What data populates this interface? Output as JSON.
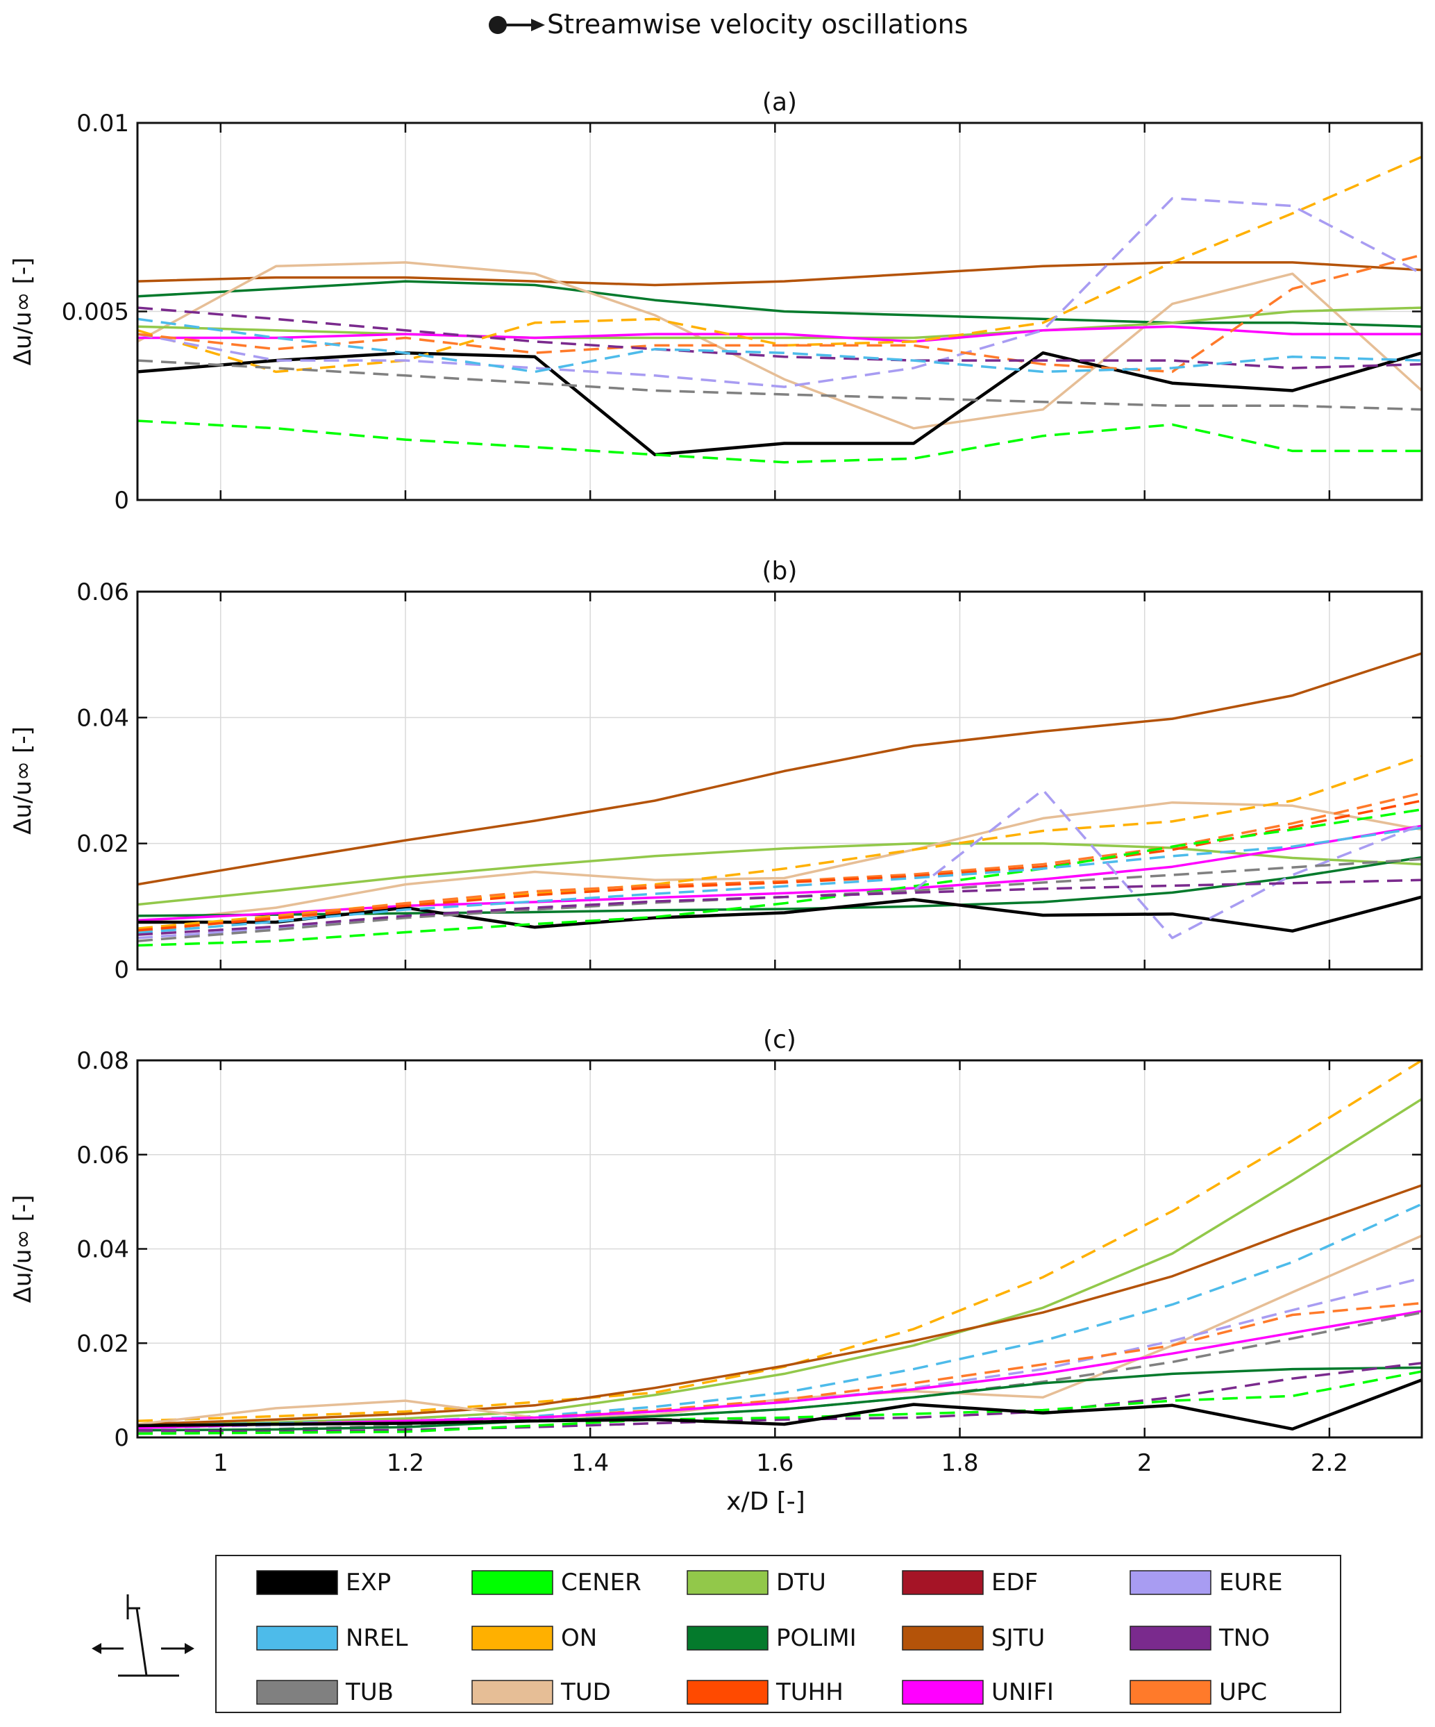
{
  "figure_title": "Streamwise velocity oscillations",
  "xlabel": "x/D [-]",
  "x_ticks": [
    "1",
    "1.2",
    "1.4",
    "1.6",
    "1.8",
    "2",
    "2.2"
  ],
  "legend": [
    {
      "key": "EXP",
      "label": "EXP",
      "color": "#000000"
    },
    {
      "key": "CENER",
      "label": "CENER",
      "color": "#00ff00"
    },
    {
      "key": "DTU",
      "label": "DTU",
      "color": "#92c84a"
    },
    {
      "key": "EDF",
      "label": "EDF",
      "color": "#a51426"
    },
    {
      "key": "EURE",
      "label": "EURE",
      "color": "#a89cf2"
    },
    {
      "key": "NREL",
      "label": "NREL",
      "color": "#4dbbea"
    },
    {
      "key": "ON",
      "label": "ON",
      "color": "#ffb000"
    },
    {
      "key": "POLIMI",
      "label": "POLIMI",
      "color": "#047a2c"
    },
    {
      "key": "SJTU",
      "label": "SJTU",
      "color": "#b45309"
    },
    {
      "key": "TNO",
      "label": "TNO",
      "color": "#7a2a8d"
    },
    {
      "key": "TUB",
      "label": "TUB",
      "color": "#808080"
    },
    {
      "key": "TUD",
      "label": "TUD",
      "color": "#e6be96"
    },
    {
      "key": "TUHH",
      "label": "TUHH",
      "color": "#ff4a00"
    },
    {
      "key": "UNIFI",
      "label": "UNIFI",
      "color": "#ff00ff"
    },
    {
      "key": "UPC",
      "label": "UPC",
      "color": "#ff7a2a"
    }
  ],
  "chart_data": [
    {
      "type": "line",
      "title": "(a)",
      "ylabel": "Δu/u∞ [-]",
      "xlim": [
        0.91,
        2.3
      ],
      "ylim": [
        0,
        0.01
      ],
      "y_ticks": [
        "0",
        "0.005",
        "0.01"
      ],
      "y_tick_values": [
        0,
        0.005,
        0.01
      ],
      "x": [
        0.91,
        1.06,
        1.2,
        1.34,
        1.47,
        1.61,
        1.75,
        1.89,
        2.03,
        2.16,
        2.3
      ],
      "series": [
        {
          "name": "SJTU",
          "dashed": false,
          "values": [
            0.0058,
            0.0059,
            0.0059,
            0.0058,
            0.0057,
            0.0058,
            0.006,
            0.0062,
            0.0063,
            0.0063,
            0.0061
          ]
        },
        {
          "name": "POLIMI",
          "dashed": false,
          "values": [
            0.0054,
            0.0056,
            0.0058,
            0.0057,
            0.0053,
            0.005,
            0.0049,
            0.0048,
            0.0047,
            0.0047,
            0.0046
          ]
        },
        {
          "name": "TUD",
          "dashed": false,
          "values": [
            0.0042,
            0.0062,
            0.0063,
            0.006,
            0.0049,
            0.0032,
            0.0019,
            0.0024,
            0.0052,
            0.006,
            0.0029
          ]
        },
        {
          "name": "DTU",
          "dashed": false,
          "values": [
            0.0046,
            0.0045,
            0.0044,
            0.0043,
            0.0043,
            0.0043,
            0.0043,
            0.0045,
            0.0047,
            0.005,
            0.0051
          ]
        },
        {
          "name": "UNIFI",
          "dashed": false,
          "values": [
            0.0043,
            0.0043,
            0.0044,
            0.0043,
            0.0044,
            0.0044,
            0.0042,
            0.0045,
            0.0046,
            0.0044,
            0.0044
          ]
        },
        {
          "name": "EXP",
          "dashed": false,
          "values": [
            0.0034,
            0.0037,
            0.0039,
            0.0038,
            0.0012,
            0.0015,
            0.0015,
            0.0039,
            0.0031,
            0.0029,
            0.0039
          ]
        },
        {
          "name": "ON",
          "dashed": true,
          "values": [
            0.0045,
            0.0034,
            0.0037,
            0.0047,
            0.0048,
            0.0041,
            0.0042,
            0.0047,
            0.0063,
            0.0076,
            0.0091
          ]
        },
        {
          "name": "EURE",
          "dashed": true,
          "values": [
            0.0044,
            0.0037,
            0.0037,
            0.0035,
            0.0033,
            0.003,
            0.0035,
            0.0045,
            0.008,
            0.0078,
            0.006
          ]
        },
        {
          "name": "UPC",
          "dashed": true,
          "values": [
            0.0044,
            0.004,
            0.0043,
            0.0039,
            0.0041,
            0.0041,
            0.0041,
            0.0036,
            0.0034,
            0.0056,
            0.0065
          ]
        },
        {
          "name": "TNO",
          "dashed": true,
          "values": [
            0.0051,
            0.0048,
            0.0045,
            0.0042,
            0.004,
            0.0038,
            0.0037,
            0.0037,
            0.0037,
            0.0035,
            0.0036
          ]
        },
        {
          "name": "NREL",
          "dashed": true,
          "values": [
            0.0048,
            0.0043,
            0.0039,
            0.0034,
            0.004,
            0.0039,
            0.0037,
            0.0034,
            0.0035,
            0.0038,
            0.0037
          ]
        },
        {
          "name": "TUB",
          "dashed": true,
          "values": [
            0.0037,
            0.0035,
            0.0033,
            0.0031,
            0.0029,
            0.0028,
            0.0027,
            0.0026,
            0.0025,
            0.0025,
            0.0024
          ]
        },
        {
          "name": "CENER",
          "dashed": true,
          "values": [
            0.0021,
            0.0019,
            0.0016,
            0.0014,
            0.0012,
            0.001,
            0.0011,
            0.0017,
            0.002,
            0.0013,
            0.0013
          ]
        }
      ]
    },
    {
      "type": "line",
      "title": "(b)",
      "ylabel": "Δu/u∞ [-]",
      "xlim": [
        0.91,
        2.3
      ],
      "ylim": [
        0,
        0.06
      ],
      "y_ticks": [
        "0",
        "0.02",
        "0.04",
        "0.06"
      ],
      "y_tick_values": [
        0,
        0.02,
        0.04,
        0.06
      ],
      "x": [
        0.91,
        1.06,
        1.2,
        1.34,
        1.47,
        1.61,
        1.75,
        1.89,
        2.03,
        2.16,
        2.3
      ],
      "series": [
        {
          "name": "SJTU",
          "dashed": false,
          "values": [
            0.0135,
            0.0172,
            0.0205,
            0.0236,
            0.0268,
            0.0315,
            0.0355,
            0.0378,
            0.0398,
            0.0435,
            0.0502
          ]
        },
        {
          "name": "DTU",
          "dashed": false,
          "values": [
            0.0103,
            0.0125,
            0.0147,
            0.0165,
            0.018,
            0.0192,
            0.02,
            0.02,
            0.0193,
            0.0177,
            0.0167
          ]
        },
        {
          "name": "TUD",
          "dashed": false,
          "values": [
            0.0075,
            0.0098,
            0.0135,
            0.0155,
            0.0142,
            0.0145,
            0.019,
            0.024,
            0.0265,
            0.026,
            0.0222
          ]
        },
        {
          "name": "POLIMI",
          "dashed": false,
          "values": [
            0.0085,
            0.0087,
            0.0089,
            0.0091,
            0.0094,
            0.0096,
            0.01,
            0.0107,
            0.0122,
            0.0146,
            0.0178
          ]
        },
        {
          "name": "UNIFI",
          "dashed": false,
          "values": [
            0.0078,
            0.0089,
            0.0101,
            0.0107,
            0.0114,
            0.0121,
            0.0129,
            0.0143,
            0.0163,
            0.0193,
            0.0228
          ]
        },
        {
          "name": "EXP",
          "dashed": false,
          "values": [
            0.0075,
            0.0075,
            0.0098,
            0.0067,
            0.0082,
            0.009,
            0.0111,
            0.0086,
            0.0088,
            0.0061,
            0.0115
          ]
        },
        {
          "name": "ON",
          "dashed": true,
          "values": [
            0.0065,
            0.0085,
            0.0105,
            0.012,
            0.0135,
            0.016,
            0.019,
            0.022,
            0.0235,
            0.0268,
            0.0338
          ]
        },
        {
          "name": "UPC",
          "dashed": true,
          "values": [
            0.006,
            0.0083,
            0.0105,
            0.0124,
            0.0133,
            0.014,
            0.0151,
            0.0167,
            0.0195,
            0.0232,
            0.028
          ]
        },
        {
          "name": "TUHH",
          "dashed": true,
          "values": [
            0.0062,
            0.0081,
            0.0101,
            0.0118,
            0.013,
            0.0138,
            0.0148,
            0.0163,
            0.019,
            0.0226,
            0.0268
          ]
        },
        {
          "name": "CENER",
          "dashed": true,
          "values": [
            0.0038,
            0.0045,
            0.0059,
            0.0072,
            0.0083,
            0.0105,
            0.0132,
            0.016,
            0.0195,
            0.0222,
            0.0254
          ]
        },
        {
          "name": "NREL",
          "dashed": true,
          "values": [
            0.0058,
            0.0076,
            0.0095,
            0.0108,
            0.012,
            0.0132,
            0.0145,
            0.016,
            0.018,
            0.0195,
            0.0225
          ]
        },
        {
          "name": "EURE",
          "dashed": true,
          "values": [
            0.005,
            0.0065,
            0.0085,
            0.0095,
            0.0108,
            0.0115,
            0.0125,
            0.0285,
            0.005,
            0.015,
            0.023
          ]
        },
        {
          "name": "TUB",
          "dashed": true,
          "values": [
            0.0045,
            0.0063,
            0.0082,
            0.0095,
            0.0106,
            0.0115,
            0.0125,
            0.0138,
            0.015,
            0.0162,
            0.0175
          ]
        },
        {
          "name": "TNO",
          "dashed": true,
          "values": [
            0.0055,
            0.0068,
            0.0085,
            0.0098,
            0.0108,
            0.0115,
            0.0122,
            0.0128,
            0.0133,
            0.0137,
            0.0142
          ]
        }
      ]
    },
    {
      "type": "line",
      "title": "(c)",
      "ylabel": "Δu/u∞ [-]",
      "xlim": [
        0.91,
        2.3
      ],
      "ylim": [
        0,
        0.08
      ],
      "y_ticks": [
        "0",
        "0.02",
        "0.04",
        "0.06",
        "0.08"
      ],
      "y_tick_values": [
        0,
        0.02,
        0.04,
        0.06,
        0.08
      ],
      "x": [
        0.91,
        1.06,
        1.2,
        1.34,
        1.47,
        1.61,
        1.75,
        1.89,
        2.03,
        2.16,
        2.3
      ],
      "series": [
        {
          "name": "ON",
          "dashed": true,
          "values": [
            0.0035,
            0.0045,
            0.0055,
            0.0075,
            0.0095,
            0.015,
            0.023,
            0.034,
            0.048,
            0.063,
            0.08
          ]
        },
        {
          "name": "DTU",
          "dashed": false,
          "values": [
            0.0025,
            0.0032,
            0.004,
            0.0055,
            0.009,
            0.0135,
            0.0195,
            0.0275,
            0.039,
            0.0545,
            0.0718
          ]
        },
        {
          "name": "SJTU",
          "dashed": false,
          "values": [
            0.0028,
            0.0038,
            0.005,
            0.0068,
            0.0105,
            0.0152,
            0.0205,
            0.0265,
            0.0342,
            0.0438,
            0.0535
          ]
        },
        {
          "name": "NREL",
          "dashed": true,
          "values": [
            0.0025,
            0.003,
            0.0035,
            0.0045,
            0.0065,
            0.0095,
            0.0145,
            0.0205,
            0.0282,
            0.0372,
            0.0495
          ]
        },
        {
          "name": "TUD",
          "dashed": false,
          "values": [
            0.0028,
            0.0062,
            0.0078,
            0.0042,
            0.0048,
            0.0082,
            0.0098,
            0.0085,
            0.0195,
            0.0308,
            0.0428
          ]
        },
        {
          "name": "EURE",
          "dashed": true,
          "values": [
            0.002,
            0.0026,
            0.0032,
            0.004,
            0.0055,
            0.0075,
            0.0105,
            0.0145,
            0.0205,
            0.027,
            0.0338
          ]
        },
        {
          "name": "UPC",
          "dashed": true,
          "values": [
            0.0022,
            0.0028,
            0.0035,
            0.0042,
            0.0058,
            0.008,
            0.0115,
            0.0155,
            0.0195,
            0.026,
            0.0285
          ]
        },
        {
          "name": "UNIFI",
          "dashed": false,
          "values": [
            0.002,
            0.0028,
            0.0035,
            0.0042,
            0.0055,
            0.0075,
            0.0102,
            0.0135,
            0.0178,
            0.0222,
            0.0268
          ]
        },
        {
          "name": "TUB",
          "dashed": true,
          "values": [
            0.0012,
            0.0018,
            0.0025,
            0.0035,
            0.0045,
            0.006,
            0.0085,
            0.0118,
            0.016,
            0.021,
            0.0265
          ]
        },
        {
          "name": "POLIMI",
          "dashed": false,
          "values": [
            0.0015,
            0.0017,
            0.0022,
            0.0035,
            0.0045,
            0.006,
            0.0085,
            0.0115,
            0.0135,
            0.0145,
            0.0148
          ]
        },
        {
          "name": "TNO",
          "dashed": true,
          "values": [
            0.0015,
            0.0012,
            0.0016,
            0.0022,
            0.003,
            0.0038,
            0.0042,
            0.0055,
            0.0085,
            0.0125,
            0.0158
          ]
        },
        {
          "name": "CENER",
          "dashed": true,
          "values": [
            0.0008,
            0.001,
            0.0012,
            0.0025,
            0.0038,
            0.0042,
            0.005,
            0.0058,
            0.0078,
            0.0088,
            0.014
          ]
        },
        {
          "name": "EXP",
          "dashed": false,
          "values": [
            0.0025,
            0.0028,
            0.003,
            0.0035,
            0.0038,
            0.0028,
            0.007,
            0.0052,
            0.0068,
            0.0018,
            0.0122
          ]
        }
      ]
    }
  ]
}
